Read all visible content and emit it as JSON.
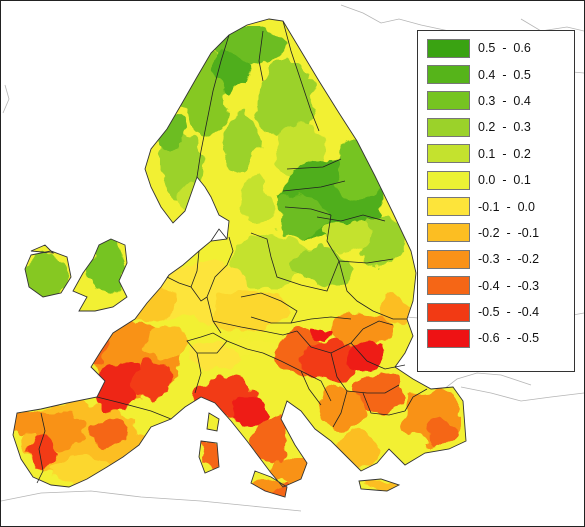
{
  "legend": {
    "items": [
      {
        "label": "0.5  -  0.6",
        "color": "#3aa312"
      },
      {
        "label": "0.4  -  0.5",
        "color": "#56b41a"
      },
      {
        "label": "0.3  -  0.4",
        "color": "#76c421"
      },
      {
        "label": "0.2  -  0.3",
        "color": "#9bd22a"
      },
      {
        "label": "0.1  -  0.2",
        "color": "#c4e22e"
      },
      {
        "label": "0.0  -  0.1",
        "color": "#ecf234"
      },
      {
        "label": "-0.1  -  0.0",
        "color": "#fde43a"
      },
      {
        "label": "-0.2  -  -0.1",
        "color": "#fcbe22"
      },
      {
        "label": "-0.3  -  -0.2",
        "color": "#f99218"
      },
      {
        "label": "-0.4  -  -0.3",
        "color": "#f56616"
      },
      {
        "label": "-0.5  -  -0.4",
        "color": "#f23a14"
      },
      {
        "label": "-0.6  -  -0.5",
        "color": "#ee1214"
      }
    ]
  },
  "map_colors": {
    "land_outline": "#222222",
    "background_outline": "#b5b5b5",
    "sea": "#ffffff"
  }
}
